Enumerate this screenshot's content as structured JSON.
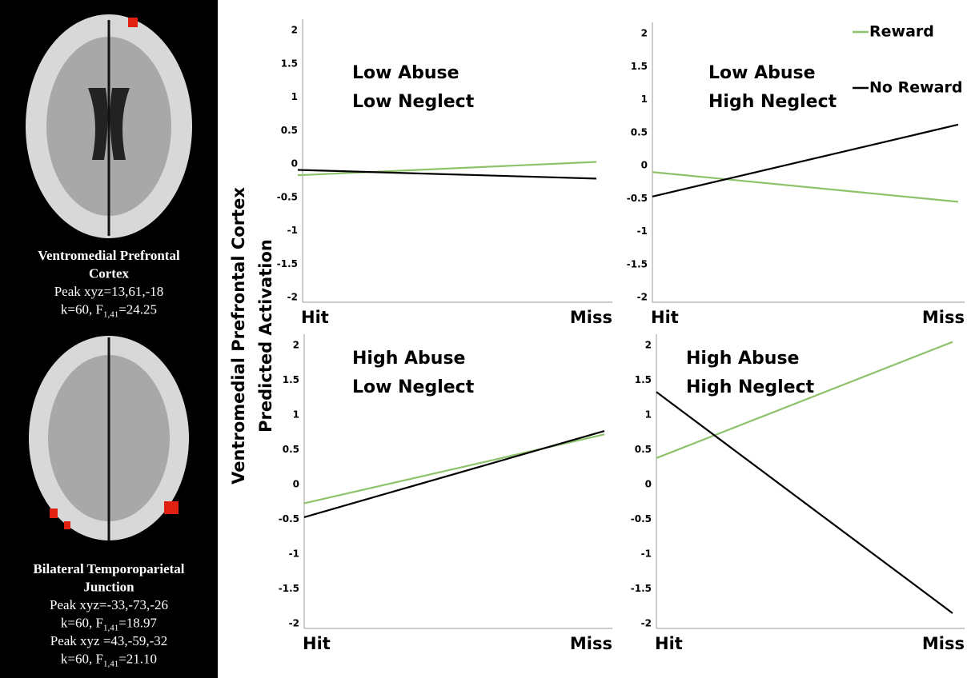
{
  "brain_panel": [
    {
      "title": [
        "Ventromedial Prefrontal",
        "Cortex"
      ],
      "lines": [
        {
          "text": "Peak xyz=13,61,-18"
        },
        {
          "text": "k=60, F",
          "sub": "1,41",
          "after": "=24.25"
        }
      ]
    },
    {
      "title": [
        "Bilateral Temporoparietal",
        "Junction"
      ],
      "lines": [
        {
          "text": "Peak xyz=-33,-73,-26"
        },
        {
          "text": "k=60, F",
          "sub": "1,41",
          "after": "=18.97"
        },
        {
          "text": "Peak xyz =43,-59,-32"
        },
        {
          "text": "k=60, F",
          "sub": "1,41",
          "after": "=21.10"
        }
      ]
    }
  ],
  "y_axis_label": [
    "Ventromedial Prefrontal Cortex",
    "Predicted Activation"
  ],
  "chart_data": [
    {
      "type": "line",
      "annotation": [
        "Low Abuse",
        "Low Neglect"
      ],
      "categories": [
        "Hit",
        "Miss"
      ],
      "ylim": [
        -2,
        2
      ],
      "yticks": [
        -2,
        -1.5,
        -1,
        -0.5,
        0,
        0.5,
        1,
        1.5,
        2
      ],
      "legend": false,
      "series": [
        {
          "name": "Reward",
          "color": "#8dc26a",
          "values": [
            -0.17,
            0.03
          ]
        },
        {
          "name": "No Reward",
          "color": "#000000",
          "values": [
            -0.09,
            -0.22
          ]
        }
      ]
    },
    {
      "type": "line",
      "annotation": [
        "Low Abuse",
        "High Neglect"
      ],
      "categories": [
        "Hit",
        "Miss"
      ],
      "ylim": [
        -2,
        2
      ],
      "yticks": [
        -2,
        -1.5,
        -1,
        -0.5,
        0,
        0.5,
        1,
        1.5,
        2
      ],
      "legend": true,
      "series": [
        {
          "name": "Reward",
          "color": "#8dc26a",
          "values": [
            -0.1,
            -0.55
          ]
        },
        {
          "name": "No Reward",
          "color": "#000000",
          "values": [
            -0.47,
            0.62
          ]
        }
      ]
    },
    {
      "type": "line",
      "annotation": [
        "High Abuse",
        "Low Neglect"
      ],
      "categories": [
        "Hit",
        "Miss"
      ],
      "ylim": [
        -2,
        2
      ],
      "yticks": [
        -2,
        -1.5,
        -1,
        -0.5,
        0,
        0.5,
        1,
        1.5,
        2
      ],
      "legend": false,
      "series": [
        {
          "name": "Reward",
          "color": "#8dc26a",
          "values": [
            -0.27,
            0.72
          ]
        },
        {
          "name": "No Reward",
          "color": "#000000",
          "values": [
            -0.47,
            0.77
          ]
        }
      ]
    },
    {
      "type": "line",
      "annotation": [
        "High Abuse",
        "High Neglect"
      ],
      "categories": [
        "Hit",
        "Miss"
      ],
      "ylim": [
        -2,
        2
      ],
      "yticks": [
        -2,
        -1.5,
        -1,
        -0.5,
        0,
        0.5,
        1,
        1.5,
        2
      ],
      "legend": false,
      "series": [
        {
          "name": "Reward",
          "color": "#8dc26a",
          "values": [
            0.38,
            2.05
          ]
        },
        {
          "name": "No Reward",
          "color": "#000000",
          "values": [
            1.33,
            -1.85
          ]
        }
      ]
    }
  ]
}
